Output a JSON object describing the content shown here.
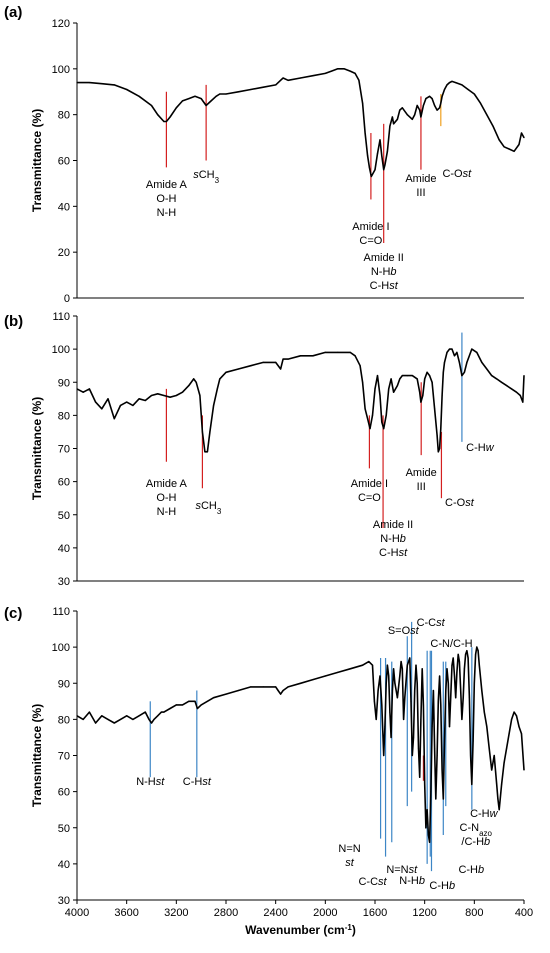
{
  "figure": {
    "accent": "#d42020",
    "accent_orange": "#f0a020",
    "accent_blue": "#3d86c6",
    "line_color": "#000000"
  },
  "chart_data": [
    {
      "type": "line",
      "panel_label": "(a)",
      "ylabel": "Transmittance (%)",
      "xlabel": "",
      "xlim": [
        4000,
        400
      ],
      "ylim": [
        0,
        120
      ],
      "yticks": [
        0,
        20,
        40,
        60,
        80,
        100,
        120
      ],
      "xticks": [],
      "grid": false,
      "series": [
        {
          "x": [
            4000,
            3900,
            3800,
            3700,
            3600,
            3500,
            3400,
            3350,
            3300,
            3280,
            3250,
            3200,
            3150,
            3100,
            3050,
            3000,
            2960,
            2920,
            2880,
            2850,
            2800,
            2700,
            2600,
            2500,
            2400,
            2360,
            2340,
            2300,
            2200,
            2100,
            2000,
            1950,
            1900,
            1850,
            1800,
            1760,
            1730,
            1700,
            1680,
            1660,
            1645,
            1630,
            1600,
            1580,
            1560,
            1545,
            1530,
            1520,
            1500,
            1480,
            1460,
            1450,
            1420,
            1400,
            1380,
            1340,
            1300,
            1280,
            1260,
            1240,
            1230,
            1210,
            1190,
            1160,
            1140,
            1120,
            1100,
            1080,
            1070,
            1060,
            1040,
            1020,
            1000,
            980,
            950,
            900,
            850,
            800,
            750,
            700,
            650,
            600,
            560,
            520,
            480,
            440,
            420,
            400
          ],
          "values": [
            94,
            94,
            93.5,
            93,
            91,
            88,
            84,
            80,
            77,
            77,
            79,
            83,
            86,
            87,
            88,
            87,
            84,
            86,
            88,
            89,
            89,
            90,
            91,
            92,
            93,
            95,
            96,
            95,
            96,
            97,
            98,
            99,
            100,
            100,
            99,
            98,
            95,
            85,
            72,
            62,
            57,
            53,
            56,
            63,
            69,
            62,
            56,
            58,
            64,
            75,
            79,
            76,
            78,
            82,
            83,
            80,
            78,
            80,
            84,
            82,
            79,
            84,
            87,
            88,
            87,
            84,
            82,
            83,
            85,
            88,
            91,
            93,
            94,
            94.5,
            94,
            93,
            91,
            89,
            85,
            80,
            75,
            69,
            66,
            65,
            64,
            67,
            72,
            70
          ]
        }
      ],
      "annotations": [
        {
          "x": 3280,
          "top": 90,
          "bottom": 57,
          "color": "#d42020",
          "lines": [
            "Amide A",
            "O-H",
            "N-H"
          ]
        },
        {
          "x": 2960,
          "top": 93,
          "bottom": 60,
          "color": "#d42020",
          "lines": [
            "sCH3"
          ]
        },
        {
          "x": 1633,
          "top": 72,
          "bottom": 43,
          "color": "#d42020",
          "lines": [
            "Amide I",
            "C=O"
          ]
        },
        {
          "x": 1530,
          "top": 76,
          "bottom": 24,
          "color": "#d42020",
          "lines": [
            "Amide II",
            "N-Hb",
            "C-Hst"
          ]
        },
        {
          "x": 1230,
          "top": 88,
          "bottom": 56,
          "color": "#d42020",
          "lines": [
            "Amide",
            "III"
          ]
        },
        {
          "x": 1070,
          "top": 89,
          "bottom": 75,
          "color": "#f0a020",
          "lines": [
            "C-Ost"
          ]
        }
      ]
    },
    {
      "type": "line",
      "panel_label": "(b)",
      "ylabel": "Transmittance (%)",
      "xlabel": "",
      "xlim": [
        4000,
        400
      ],
      "ylim": [
        30,
        110
      ],
      "yticks": [
        30,
        40,
        50,
        60,
        70,
        80,
        90,
        100,
        110
      ],
      "xticks": [],
      "grid": false,
      "series": [
        {
          "x": [
            4000,
            3950,
            3900,
            3850,
            3800,
            3750,
            3700,
            3650,
            3600,
            3550,
            3500,
            3450,
            3400,
            3350,
            3300,
            3250,
            3200,
            3150,
            3100,
            3060,
            3040,
            3010,
            2990,
            2970,
            2950,
            2930,
            2900,
            2870,
            2850,
            2800,
            2700,
            2600,
            2500,
            2400,
            2360,
            2340,
            2300,
            2200,
            2100,
            2000,
            1900,
            1800,
            1760,
            1720,
            1700,
            1680,
            1660,
            1640,
            1620,
            1600,
            1580,
            1560,
            1545,
            1530,
            1510,
            1490,
            1470,
            1450,
            1420,
            1400,
            1380,
            1340,
            1300,
            1260,
            1240,
            1230,
            1215,
            1200,
            1180,
            1160,
            1140,
            1120,
            1100,
            1090,
            1080,
            1070,
            1060,
            1050,
            1040,
            1020,
            1000,
            980,
            960,
            940,
            920,
            900,
            880,
            860,
            820,
            780,
            740,
            700,
            660,
            620,
            580,
            540,
            500,
            460,
            430,
            410,
            400
          ],
          "values": [
            88,
            87,
            88,
            84,
            82,
            85,
            79,
            83,
            84,
            83,
            85,
            84.5,
            86,
            86.5,
            86,
            85.5,
            86,
            87,
            89,
            91,
            90,
            86,
            75,
            69,
            69,
            75,
            83,
            88,
            91,
            93,
            94,
            95,
            96,
            96,
            94,
            97,
            97,
            98,
            98,
            99,
            99,
            99,
            98,
            95,
            90,
            82,
            79,
            76,
            80,
            88,
            92,
            86,
            78,
            76,
            80,
            88,
            91,
            87,
            89,
            91,
            92,
            92,
            92,
            91,
            87,
            84,
            86,
            91,
            93,
            92,
            90,
            82,
            74,
            69,
            70,
            76,
            86,
            93,
            96,
            99,
            100,
            100,
            98,
            99,
            96,
            92,
            93,
            96,
            100,
            99,
            96,
            94,
            92,
            91,
            90,
            89,
            88,
            87,
            86,
            84,
            92
          ]
        }
      ],
      "annotations": [
        {
          "x": 3280,
          "top": 88,
          "bottom": 66,
          "color": "#d42020",
          "lines": [
            "Amide A",
            "O-H",
            "N-H"
          ]
        },
        {
          "x": 2990,
          "top": 80,
          "bottom": 58,
          "color": "#d42020",
          "lines": [
            "sCH3"
          ]
        },
        {
          "x": 1645,
          "top": 80,
          "bottom": 64,
          "color": "#d42020",
          "lines": [
            "Amide I",
            "C=O"
          ]
        },
        {
          "x": 1535,
          "top": 80,
          "bottom": 46,
          "color": "#d42020",
          "lines": [
            "Amide II",
            "N-Hb",
            "C-Hst"
          ]
        },
        {
          "x": 1228,
          "top": 90,
          "bottom": 68,
          "color": "#d42020",
          "lines": [
            "Amide",
            "III"
          ]
        },
        {
          "x": 1065,
          "top": 75,
          "bottom": 55,
          "color": "#d42020",
          "lines": [
            "C-Ost"
          ]
        },
        {
          "x": 900,
          "top": 105,
          "bottom": 72,
          "color": "#3d86c6",
          "lines": [
            "C-Hw"
          ]
        }
      ]
    },
    {
      "type": "line",
      "panel_label": "(c)",
      "ylabel": "Transmittance (%)",
      "xlabel": "Wavenumber (cm-1)",
      "xlim": [
        4000,
        400
      ],
      "ylim": [
        30,
        110
      ],
      "yticks": [
        30,
        40,
        50,
        60,
        70,
        80,
        90,
        100,
        110
      ],
      "xticks": [
        4000,
        3600,
        3200,
        2800,
        2400,
        2000,
        1600,
        1200,
        800,
        400
      ],
      "grid": false,
      "series": [
        {
          "x": [
            4000,
            3950,
            3900,
            3850,
            3800,
            3750,
            3700,
            3650,
            3600,
            3550,
            3500,
            3450,
            3420,
            3400,
            3380,
            3350,
            3320,
            3300,
            3250,
            3200,
            3150,
            3100,
            3050,
            3030,
            3000,
            2950,
            2900,
            2800,
            2700,
            2600,
            2500,
            2400,
            2380,
            2360,
            2340,
            2300,
            2200,
            2100,
            2000,
            1900,
            1800,
            1700,
            1650,
            1620,
            1605,
            1590,
            1575,
            1560,
            1545,
            1530,
            1520,
            1510,
            1500,
            1490,
            1480,
            1470,
            1460,
            1450,
            1440,
            1420,
            1400,
            1390,
            1380,
            1370,
            1360,
            1340,
            1320,
            1310,
            1300,
            1290,
            1280,
            1270,
            1260,
            1250,
            1240,
            1230,
            1220,
            1210,
            1200,
            1190,
            1180,
            1170,
            1160,
            1150,
            1140,
            1130,
            1120,
            1110,
            1100,
            1090,
            1080,
            1070,
            1060,
            1050,
            1040,
            1030,
            1020,
            1010,
            1000,
            990,
            980,
            970,
            960,
            950,
            940,
            930,
            920,
            910,
            900,
            890,
            880,
            870,
            860,
            850,
            840,
            830,
            820,
            810,
            800,
            790,
            780,
            770,
            760,
            740,
            720,
            700,
            680,
            660,
            640,
            620,
            610,
            600,
            580,
            560,
            540,
            520,
            500,
            480,
            460,
            440,
            420,
            400
          ],
          "values": [
            81,
            80,
            82,
            79,
            81,
            80,
            79,
            80,
            81,
            80,
            81,
            82,
            80,
            79,
            80,
            81,
            82,
            82,
            83,
            84,
            84,
            85,
            85,
            83,
            84,
            85,
            86,
            87,
            88,
            89,
            89,
            89,
            88,
            87,
            88,
            89,
            90,
            91,
            92,
            93,
            94,
            95,
            96,
            95,
            85,
            80,
            88,
            92,
            84,
            70,
            78,
            90,
            95,
            92,
            82,
            75,
            88,
            94,
            90,
            86,
            92,
            96,
            94,
            80,
            86,
            95,
            97,
            85,
            70,
            75,
            88,
            95,
            90,
            72,
            64,
            80,
            94,
            84,
            62,
            50,
            55,
            48,
            46,
            60,
            78,
            88,
            72,
            58,
            70,
            85,
            92,
            84,
            66,
            58,
            74,
            88,
            94,
            90,
            78,
            86,
            95,
            97,
            92,
            86,
            93,
            98,
            96,
            88,
            80,
            86,
            94,
            98,
            99,
            97,
            86,
            70,
            62,
            74,
            90,
            98,
            100,
            99,
            95,
            88,
            82,
            78,
            72,
            66,
            70,
            62,
            58,
            55,
            62,
            68,
            72,
            76,
            80,
            82,
            81,
            78,
            76,
            66
          ]
        }
      ],
      "annotations": [
        {
          "x": 3410,
          "top": 85,
          "bottom": 64,
          "color": "#3d86c6",
          "lines": [
            "N-Hst"
          ]
        },
        {
          "x": 3035,
          "top": 88,
          "bottom": 64,
          "color": "#3d86c6",
          "lines": [
            "C-Hst"
          ]
        },
        {
          "x": 1555,
          "top": 97,
          "bottom": 47,
          "color": "#3d86c6",
          "lines": [
            "N=N",
            "st"
          ]
        },
        {
          "x": 1515,
          "top": 97,
          "bottom": 42,
          "color": "#3d86c6",
          "lines": [
            "C-Cst"
          ]
        },
        {
          "x": 1465,
          "top": 96,
          "bottom": 46,
          "color": "#3d86c6",
          "lines": [
            "N=Nst"
          ]
        },
        {
          "x": 1340,
          "top": 103,
          "bottom": 56,
          "color": "#3d86c6",
          "lines": [
            "S=Ost"
          ]
        },
        {
          "x": 1305,
          "top": 107,
          "bottom": 60,
          "color": "#3d86c6",
          "lines": [
            "C-Cst"
          ]
        },
        {
          "x": 1210,
          "top": 70,
          "bottom": 63,
          "color": "#d42020",
          "lines": []
        },
        {
          "x": 1180,
          "top": 99,
          "bottom": 40,
          "color": "#3d86c6",
          "lines": [
            "N-Hb"
          ]
        },
        {
          "x": 1155,
          "top": 99,
          "bottom": 42,
          "color": "#3d86c6",
          "lines": [
            "C-Hb"
          ]
        },
        {
          "x": 1145,
          "top": 99,
          "bottom": 38,
          "color": "#3d86c6",
          "lines": [
            "C-N/C-H"
          ]
        },
        {
          "x": 1050,
          "top": 96,
          "bottom": 48,
          "color": "#3d86c6",
          "lines": [
            "C-Hb"
          ]
        },
        {
          "x": 1030,
          "top": 96,
          "bottom": 56,
          "color": "#3d86c6",
          "lines": [
            "C-Nazo",
            "/C-Hb"
          ]
        },
        {
          "x": 820,
          "top": 100,
          "bottom": 55,
          "color": "#3d86c6",
          "lines": [
            "C-Hw"
          ]
        }
      ]
    }
  ]
}
